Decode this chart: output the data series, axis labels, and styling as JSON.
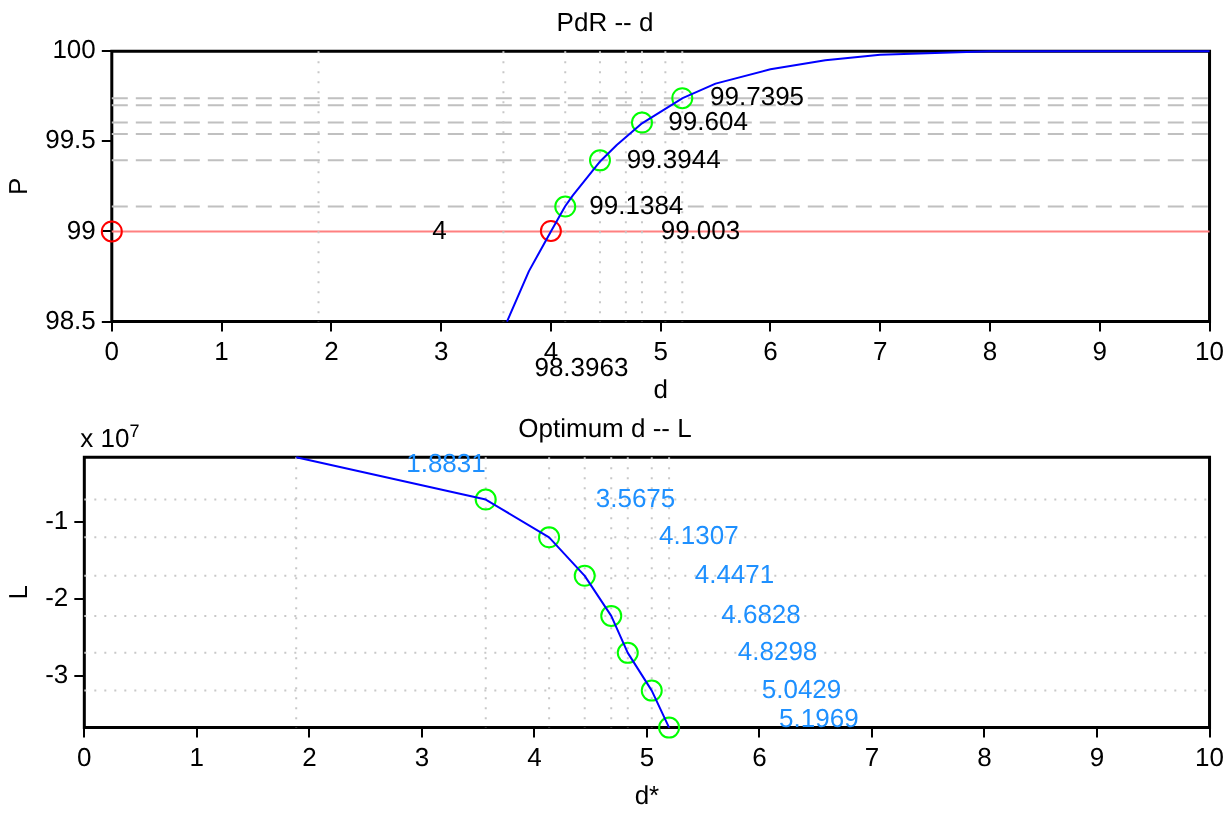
{
  "chart_data": [
    {
      "type": "line",
      "title": "PdR -- d",
      "xlabel": "d",
      "ylabel": "P",
      "xlim": [
        0,
        10
      ],
      "ylim": [
        98.5,
        100
      ],
      "xticks": [
        0,
        1,
        2,
        3,
        4,
        5,
        6,
        7,
        8,
        9,
        10
      ],
      "yticks": [
        98.5,
        99,
        99.5,
        100
      ],
      "grid": false,
      "legend": false,
      "series": [
        {
          "type": "line",
          "color": "#0000ff",
          "marker": "none",
          "x": [
            3.6,
            3.8,
            4.0,
            4.13,
            4.2,
            4.45,
            4.6,
            4.83,
            5.2,
            5.5,
            6.0,
            6.5,
            7.0,
            8.0,
            9.0,
            10.0
          ],
          "values": [
            98.5,
            98.78,
            99.0,
            99.14,
            99.2,
            99.39,
            99.48,
            99.6,
            99.74,
            99.82,
            99.9,
            99.95,
            99.98,
            100,
            100,
            100
          ]
        },
        {
          "type": "scatter",
          "color": "#00ff00",
          "marker": "circle",
          "x": [
            4.1307,
            4.4471,
            4.8298,
            5.1969
          ],
          "values": [
            99.1384,
            99.3944,
            99.604,
            99.7395
          ]
        },
        {
          "type": "scatter",
          "color": "#ff0000",
          "marker": "circle",
          "x": [
            0,
            4.0
          ],
          "values": [
            99,
            99.003
          ]
        }
      ],
      "ref_lines": [
        {
          "axis": "y",
          "value": 99,
          "color": "#ff8080",
          "line_style": "solid"
        },
        {
          "axis": "y",
          "value": 99.1384,
          "color": "#c0c0c0",
          "line_style": "dashed"
        },
        {
          "axis": "y",
          "value": 99.3944,
          "color": "#c0c0c0",
          "line_style": "dashed"
        },
        {
          "axis": "y",
          "value": 99.54,
          "color": "#c0c0c0",
          "line_style": "dashed"
        },
        {
          "axis": "y",
          "value": 99.604,
          "color": "#c0c0c0",
          "line_style": "dashed"
        },
        {
          "axis": "y",
          "value": 99.7,
          "color": "#c0c0c0",
          "line_style": "dashed"
        },
        {
          "axis": "y",
          "value": 99.7395,
          "color": "#c0c0c0",
          "line_style": "dashed"
        },
        {
          "axis": "x",
          "value": 1.8831,
          "color": "#c8c8c8",
          "line_style": "dotted"
        },
        {
          "axis": "x",
          "value": 3.5675,
          "color": "#c8c8c8",
          "line_style": "dotted"
        },
        {
          "axis": "x",
          "value": 4.1307,
          "color": "#c8c8c8",
          "line_style": "dotted"
        },
        {
          "axis": "x",
          "value": 4.4471,
          "color": "#c8c8c8",
          "line_style": "dotted"
        },
        {
          "axis": "x",
          "value": 4.6828,
          "color": "#c8c8c8",
          "line_style": "dotted"
        },
        {
          "axis": "x",
          "value": 4.8298,
          "color": "#c8c8c8",
          "line_style": "dotted"
        },
        {
          "axis": "x",
          "value": 5.0429,
          "color": "#c8c8c8",
          "line_style": "dotted"
        },
        {
          "axis": "x",
          "value": 5.1969,
          "color": "#c8c8c8",
          "line_style": "dotted"
        }
      ],
      "annotations": [
        {
          "text": "99.7395",
          "x": 5.45,
          "y": 99.7395
        },
        {
          "text": "99.604",
          "x": 5.07,
          "y": 99.604
        },
        {
          "text": "99.3944",
          "x": 4.69,
          "y": 99.3944
        },
        {
          "text": "99.1384",
          "x": 4.35,
          "y": 99.1384
        },
        {
          "text": "99.003",
          "x": 5.0,
          "y": 99.0
        },
        {
          "text": "4",
          "x": 2.92,
          "y": 99.0
        },
        "98.3963"
      ]
    },
    {
      "type": "line",
      "title": "Optimum d -- L",
      "xlabel": "d*",
      "ylabel": "L",
      "xlim": [
        0,
        10
      ],
      "ylim": [
        -3.67,
        -0.16
      ],
      "xticks": [
        0,
        1,
        2,
        3,
        4,
        5,
        6,
        7,
        8,
        9,
        10
      ],
      "yticks": [
        -1,
        -2,
        -3
      ],
      "grid": false,
      "legend": false,
      "series": [
        {
          "type": "line",
          "color": "#0000ff",
          "marker": "none",
          "x": [
            1.8831,
            3.5675,
            4.1307,
            4.4471,
            4.6828,
            4.8298,
            5.0429,
            5.1969
          ],
          "values": [
            -0.16,
            -0.71,
            -1.2,
            -1.7,
            -2.22,
            -2.7,
            -3.19,
            -3.67
          ]
        },
        {
          "type": "scatter",
          "color": "#00ff00",
          "marker": "circle",
          "x": [
            3.5675,
            4.1307,
            4.4471,
            4.6828,
            4.8298,
            5.0429,
            5.1969
          ],
          "values": [
            -0.71,
            -1.2,
            -1.7,
            -2.22,
            -2.7,
            -3.19,
            -3.67
          ]
        }
      ],
      "ref_lines": [
        {
          "axis": "x",
          "value": 1.8831,
          "color": "#c8c8c8",
          "line_style": "dotted"
        },
        {
          "axis": "x",
          "value": 3.5675,
          "color": "#c8c8c8",
          "line_style": "dotted"
        },
        {
          "axis": "x",
          "value": 4.1307,
          "color": "#c8c8c8",
          "line_style": "dotted"
        },
        {
          "axis": "x",
          "value": 4.4471,
          "color": "#c8c8c8",
          "line_style": "dotted"
        },
        {
          "axis": "x",
          "value": 4.6828,
          "color": "#c8c8c8",
          "line_style": "dotted"
        },
        {
          "axis": "x",
          "value": 4.8298,
          "color": "#c8c8c8",
          "line_style": "dotted"
        },
        {
          "axis": "x",
          "value": 5.0429,
          "color": "#c8c8c8",
          "line_style": "dotted"
        },
        {
          "axis": "x",
          "value": 5.1969,
          "color": "#c8c8c8",
          "line_style": "dotted"
        },
        {
          "axis": "y",
          "value": -0.71,
          "color": "#c8c8c8",
          "line_style": "dotted"
        },
        {
          "axis": "y",
          "value": -1.2,
          "color": "#c8c8c8",
          "line_style": "dotted"
        },
        {
          "axis": "y",
          "value": -1.7,
          "color": "#c8c8c8",
          "line_style": "dotted"
        },
        {
          "axis": "y",
          "value": -2.22,
          "color": "#c8c8c8",
          "line_style": "dotted"
        },
        {
          "axis": "y",
          "value": -2.7,
          "color": "#c8c8c8",
          "line_style": "dotted"
        },
        {
          "axis": "y",
          "value": -3.19,
          "color": "#c8c8c8",
          "line_style": "dotted"
        }
      ],
      "annotations": [
        "x 10$^{7}$",
        "1.8831",
        "3.5675",
        "4.1307",
        "4.4471",
        "4.6828",
        "4.8298",
        "5.0429",
        "5.1969"
      ]
    }
  ]
}
